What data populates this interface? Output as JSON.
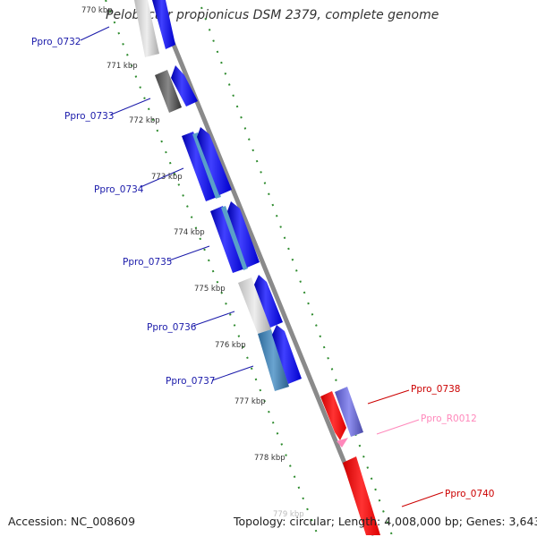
{
  "title": "Pelobacter propionicus DSM 2379, complete genome",
  "footer": {
    "accession": "Accession: NC_008609",
    "summary": "Topology: circular; Length: 4,008,000 bp; Genes: 3,643"
  },
  "ticks": [
    "770 kbp",
    "771 kbp",
    "772 kbp",
    "773 kbp",
    "774 kbp",
    "775 kbp",
    "776 kbp",
    "777 kbp",
    "778 kbp",
    "779 kbp"
  ],
  "genes": [
    "Ppro_0732",
    "Ppro_0733",
    "Ppro_0734",
    "Ppro_0735",
    "Ppro_0736",
    "Ppro_0737",
    "Ppro_0738",
    "Ppro_R0012",
    "Ppro_0740"
  ],
  "colors": {
    "forward": "#0000ee",
    "reverse": "#ee0000",
    "rna": "#ff99cc",
    "label_forward": "#1a1aaa",
    "label_reverse": "#cc0000",
    "label_rna": "#ff88bb",
    "backbone": "#8a8a8a",
    "tick_dots": "#2e8b2e"
  }
}
